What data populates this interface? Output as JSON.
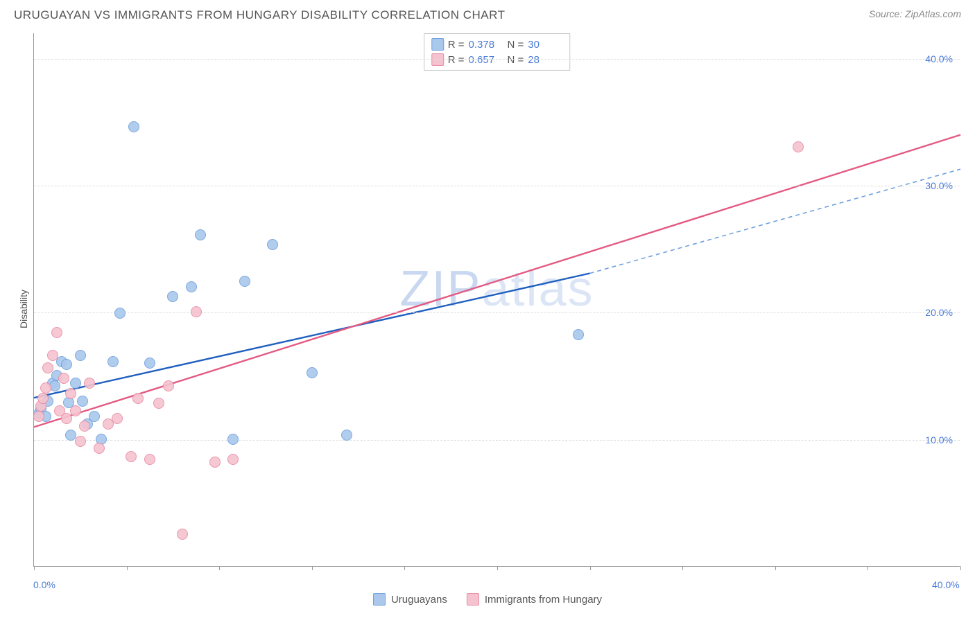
{
  "header": {
    "title": "URUGUAYAN VS IMMIGRANTS FROM HUNGARY DISABILITY CORRELATION CHART",
    "source": "Source: ZipAtlas.com"
  },
  "chart": {
    "type": "scatter",
    "ylabel": "Disability",
    "watermark": "ZIPatlas",
    "background_color": "#ffffff",
    "grid_color": "#dddddd",
    "axis_color": "#999999",
    "xlim": [
      0,
      40
    ],
    "ylim": [
      0,
      42
    ],
    "xticks": [
      0,
      4,
      8,
      12,
      16,
      20,
      24,
      28,
      32,
      36,
      40
    ],
    "xtick_labels": {
      "0": "0.0%",
      "40": "40.0%"
    },
    "yticks": [
      10,
      20,
      30,
      40
    ],
    "ytick_labels": {
      "10": "10.0%",
      "20": "20.0%",
      "30": "30.0%",
      "40": "40.0%"
    },
    "title_fontsize": 17,
    "label_fontsize": 14,
    "tick_fontsize": 14,
    "tick_color": "#4a7bd6",
    "point_radius": 8,
    "point_opacity_fill": 0.35,
    "point_border_width": 1.2,
    "series": [
      {
        "name": "Uruguayans",
        "color_fill": "#a9c8ec",
        "color_border": "#6f9fde",
        "R": "0.378",
        "N": "30",
        "regression": {
          "x1": 0,
          "y1": 13.3,
          "x2": 24,
          "y2": 23.1,
          "color": "#1f5fbf",
          "width": 2.4,
          "dash": ""
        },
        "regression_ext": {
          "x1": 24,
          "y1": 23.1,
          "x2": 40,
          "y2": 31.3,
          "color": "#6f9fde",
          "width": 1.6,
          "dash": "6,5"
        },
        "points": [
          [
            0.2,
            12.0
          ],
          [
            0.3,
            12.4
          ],
          [
            0.5,
            11.8
          ],
          [
            0.6,
            13.0
          ],
          [
            0.8,
            14.4
          ],
          [
            0.9,
            14.2
          ],
          [
            1.0,
            15.0
          ],
          [
            1.2,
            16.1
          ],
          [
            1.4,
            15.9
          ],
          [
            1.5,
            12.9
          ],
          [
            1.6,
            10.3
          ],
          [
            1.8,
            14.4
          ],
          [
            2.0,
            16.6
          ],
          [
            2.1,
            13.0
          ],
          [
            2.3,
            11.2
          ],
          [
            2.6,
            11.8
          ],
          [
            2.9,
            10.0
          ],
          [
            3.4,
            16.1
          ],
          [
            3.7,
            19.9
          ],
          [
            4.3,
            34.6
          ],
          [
            5.0,
            16.0
          ],
          [
            6.0,
            21.2
          ],
          [
            6.8,
            22.0
          ],
          [
            7.2,
            26.1
          ],
          [
            8.6,
            10.0
          ],
          [
            9.1,
            22.4
          ],
          [
            10.3,
            25.3
          ],
          [
            12.0,
            15.2
          ],
          [
            13.5,
            10.3
          ],
          [
            23.5,
            18.2
          ]
        ]
      },
      {
        "name": "Immigrants from Hungary",
        "color_fill": "#f4c3cf",
        "color_border": "#e98ba3",
        "R": "0.657",
        "N": "28",
        "regression": {
          "x1": 0,
          "y1": 11.0,
          "x2": 40,
          "y2": 34.0,
          "color": "#e45a82",
          "width": 2.4,
          "dash": ""
        },
        "points": [
          [
            0.2,
            11.8
          ],
          [
            0.3,
            12.6
          ],
          [
            0.4,
            13.2
          ],
          [
            0.5,
            14.0
          ],
          [
            0.6,
            15.6
          ],
          [
            0.8,
            16.6
          ],
          [
            1.0,
            18.4
          ],
          [
            1.1,
            12.2
          ],
          [
            1.3,
            14.8
          ],
          [
            1.4,
            11.6
          ],
          [
            1.6,
            13.6
          ],
          [
            1.8,
            12.2
          ],
          [
            2.0,
            9.8
          ],
          [
            2.2,
            11.0
          ],
          [
            2.4,
            14.4
          ],
          [
            2.8,
            9.3
          ],
          [
            3.2,
            11.2
          ],
          [
            3.6,
            11.6
          ],
          [
            4.2,
            8.6
          ],
          [
            4.5,
            13.2
          ],
          [
            5.0,
            8.4
          ],
          [
            5.4,
            12.8
          ],
          [
            5.8,
            14.2
          ],
          [
            6.4,
            2.5
          ],
          [
            7.0,
            20.0
          ],
          [
            7.8,
            8.2
          ],
          [
            8.6,
            8.4
          ],
          [
            33.0,
            33.0
          ]
        ]
      }
    ],
    "stats_box": {
      "rows": [
        {
          "swatch_fill": "#a9c8ec",
          "swatch_border": "#6f9fde",
          "r_label": "R =",
          "r_val": "0.378",
          "n_label": "N =",
          "n_val": "30"
        },
        {
          "swatch_fill": "#f4c3cf",
          "swatch_border": "#e98ba3",
          "r_label": "R =",
          "r_val": "0.657",
          "n_label": "N =",
          "n_val": "28"
        }
      ]
    },
    "bottom_legend": [
      {
        "swatch_fill": "#a9c8ec",
        "swatch_border": "#6f9fde",
        "label": "Uruguayans"
      },
      {
        "swatch_fill": "#f4c3cf",
        "swatch_border": "#e98ba3",
        "label": "Immigrants from Hungary"
      }
    ]
  }
}
